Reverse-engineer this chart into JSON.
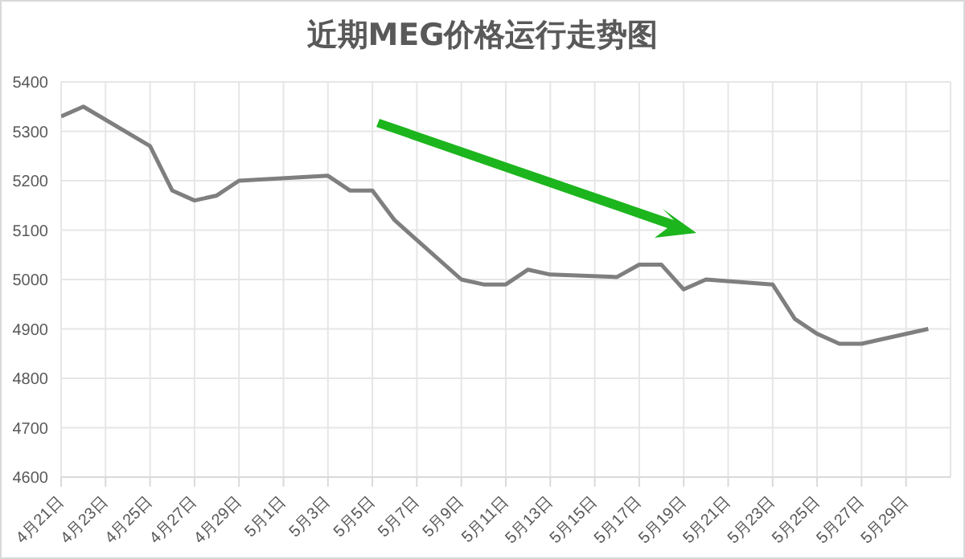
{
  "chart_data": {
    "type": "line",
    "title": "近期MEG价格运行走势图",
    "x": [
      "--04-21",
      "--04-22",
      "--04-25",
      "--04-26",
      "--04-27",
      "--04-28",
      "--04-29",
      "--05-03",
      "--05-04",
      "--05-05",
      "--05-06",
      "--05-09",
      "--05-10",
      "--05-11",
      "--05-12",
      "--05-13",
      "--05-16",
      "--05-17",
      "--05-18",
      "--05-19",
      "--05-20",
      "--05-23",
      "--05-24",
      "--05-25",
      "--05-26",
      "--05-27",
      "--05-30"
    ],
    "series": [
      {
        "color": "#7f7f7f",
        "values": [
          5330,
          5350,
          5270,
          5180,
          5160,
          5170,
          5200,
          5210,
          5180,
          5180,
          5120,
          5000,
          4990,
          4990,
          5020,
          5010,
          5005,
          5030,
          5030,
          4980,
          5000,
          4990,
          4920,
          4890,
          4870,
          4870,
          4900
        ]
      }
    ],
    "xlim": [
      "--04-21",
      "--05-31"
    ],
    "xticks": [
      {
        "value": "--04-21",
        "label": "4月21日"
      },
      {
        "value": "--04-23",
        "label": "4月23日"
      },
      {
        "value": "--04-25",
        "label": "4月25日"
      },
      {
        "value": "--04-27",
        "label": "4月27日"
      },
      {
        "value": "--04-29",
        "label": "4月29日"
      },
      {
        "value": "--05-01",
        "label": "5月1日"
      },
      {
        "value": "--05-03",
        "label": "5月3日"
      },
      {
        "value": "--05-05",
        "label": "5月5日"
      },
      {
        "value": "--05-07",
        "label": "5月7日"
      },
      {
        "value": "--05-09",
        "label": "5月9日"
      },
      {
        "value": "--05-11",
        "label": "5月11日"
      },
      {
        "value": "--05-13",
        "label": "5月13日"
      },
      {
        "value": "--05-15",
        "label": "5月15日"
      },
      {
        "value": "--05-17",
        "label": "5月17日"
      },
      {
        "value": "--05-19",
        "label": "5月19日"
      },
      {
        "value": "--05-21",
        "label": "5月21日"
      },
      {
        "value": "--05-23",
        "label": "5月23日"
      },
      {
        "value": "--05-25",
        "label": "5月25日"
      },
      {
        "value": "--05-27",
        "label": "5月27日"
      },
      {
        "value": "--05-29",
        "label": "5月29日"
      }
    ],
    "ylim": [
      4600,
      5400
    ],
    "yticks": [
      4600,
      4700,
      4800,
      4900,
      5000,
      5100,
      5200,
      5300,
      5400
    ],
    "grid": true,
    "legend": false,
    "marker": "none",
    "line_style": "solid"
  }
}
